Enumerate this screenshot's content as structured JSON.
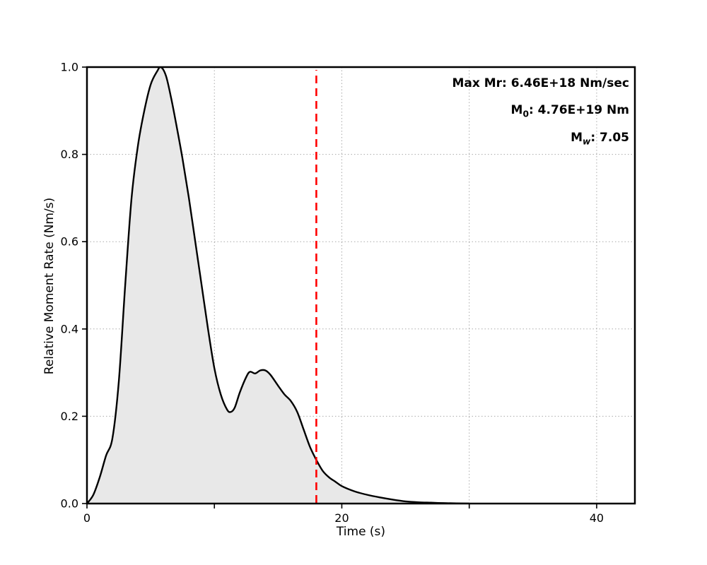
{
  "chart_data": {
    "type": "area",
    "title": "",
    "xlabel": "Time (s)",
    "ylabel": "Relative Moment Rate (Nm/s)",
    "xlim": [
      0,
      43
    ],
    "ylim": [
      0,
      1.0
    ],
    "grid": true,
    "legend": "none",
    "x_gridlines": [
      10,
      20,
      30,
      40
    ],
    "y_gridlines": [
      0.2,
      0.4,
      0.6,
      0.8
    ],
    "x_ticks": [
      0,
      10,
      20,
      30,
      40
    ],
    "x_tick_labels": [
      {
        "value": 0,
        "label": "0"
      },
      {
        "value": 20,
        "label": "20"
      },
      {
        "value": 40,
        "label": "40"
      }
    ],
    "y_ticks": [
      {
        "value": 0.0,
        "label": "0.0"
      },
      {
        "value": 0.2,
        "label": "0.2"
      },
      {
        "value": 0.4,
        "label": "0.4"
      },
      {
        "value": 0.6,
        "label": "0.6"
      },
      {
        "value": 0.8,
        "label": "0.8"
      },
      {
        "value": 1.0,
        "label": "1.0"
      }
    ],
    "series": [
      {
        "name": "relative-moment-rate",
        "stroke": "#000000",
        "fill": "#e8e8e8",
        "x": [
          0,
          0.5,
          1.0,
          1.5,
          2.0,
          2.5,
          3.0,
          3.5,
          4.0,
          4.5,
          5.0,
          5.5,
          5.8,
          6.2,
          6.6,
          7.0,
          7.5,
          8.0,
          8.5,
          9.0,
          9.5,
          10.0,
          10.5,
          11.0,
          11.3,
          11.6,
          12.0,
          12.5,
          12.8,
          13.2,
          13.6,
          14.0,
          14.4,
          15.0,
          15.5,
          16.0,
          16.5,
          17.0,
          17.5,
          18.0,
          18.5,
          19.0,
          19.5,
          20.0,
          21.0,
          22.0,
          23.0,
          24.0,
          25.0,
          26.0,
          27.0,
          28.0,
          29.0,
          30.0
        ],
        "y": [
          0,
          0.02,
          0.06,
          0.11,
          0.15,
          0.28,
          0.5,
          0.7,
          0.82,
          0.9,
          0.96,
          0.99,
          1.0,
          0.98,
          0.93,
          0.87,
          0.79,
          0.7,
          0.6,
          0.5,
          0.4,
          0.31,
          0.25,
          0.215,
          0.21,
          0.22,
          0.255,
          0.29,
          0.302,
          0.298,
          0.305,
          0.305,
          0.295,
          0.27,
          0.25,
          0.235,
          0.21,
          0.17,
          0.13,
          0.1,
          0.075,
          0.06,
          0.05,
          0.04,
          0.028,
          0.02,
          0.014,
          0.009,
          0.005,
          0.003,
          0.002,
          0.001,
          0.0005,
          0.0
        ]
      }
    ],
    "vline": {
      "x": 18,
      "color": "#ff0000",
      "style": "dashed",
      "name": "end-time-marker"
    },
    "annotations": [
      {
        "prefix": "Max Mr",
        "sub": "",
        "suffix": ": 6.46E+18 Nm/sec"
      },
      {
        "prefix": "M",
        "sub": "0",
        "suffix": ": 4.76E+19 Nm"
      },
      {
        "prefix": "M",
        "sub": "w",
        "suffix": ": 7.05"
      }
    ],
    "colors": {
      "grid": "#aaaaaa",
      "spine": "#000000",
      "curve": "#000000",
      "fill": "#e8e8e8",
      "vline": "#ff0000"
    }
  }
}
